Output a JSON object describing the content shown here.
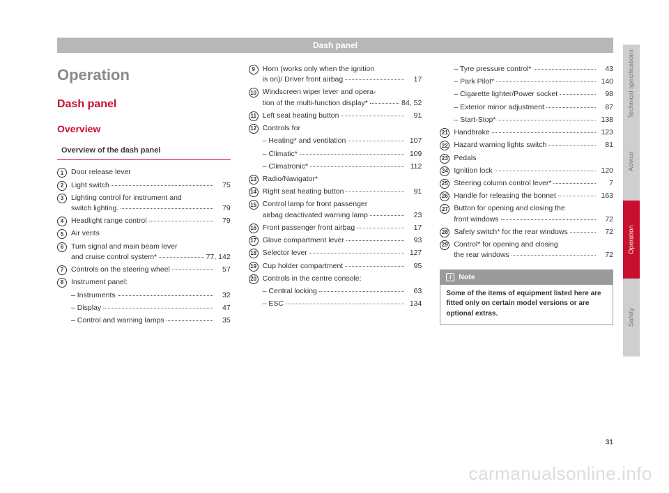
{
  "header": "Dash panel",
  "h1": "Operation",
  "h2": "Dash panel",
  "h3": "Overview",
  "subHead": "Overview of the dash panel",
  "col1": [
    {
      "n": "1",
      "lines": [
        {
          "t": "Door release lever"
        }
      ]
    },
    {
      "n": "2",
      "lines": [
        {
          "t": "Light switch",
          "p": "75"
        }
      ]
    },
    {
      "n": "3",
      "lines": [
        {
          "t": "Lighting control for instrument and"
        },
        {
          "t": "switch lighting.",
          "p": "79",
          "indent": true
        }
      ]
    },
    {
      "n": "4",
      "lines": [
        {
          "t": "Headlight range control",
          "p": "79"
        }
      ]
    },
    {
      "n": "5",
      "lines": [
        {
          "t": "Air vents"
        }
      ]
    },
    {
      "n": "6",
      "lines": [
        {
          "t": "Turn signal and main beam lever"
        },
        {
          "t": "and cruise control system*",
          "p": "77, 142",
          "indent": true
        }
      ]
    },
    {
      "n": "7",
      "lines": [
        {
          "t": "Controls on the steering wheel",
          "p": "57"
        }
      ]
    },
    {
      "n": "8",
      "lines": [
        {
          "t": "Instrument panel:"
        }
      ],
      "subs": [
        {
          "t": "– Instruments",
          "p": "32"
        },
        {
          "t": "– Display",
          "p": "47"
        },
        {
          "t": "– Control and warning lamps",
          "p": "35"
        }
      ]
    }
  ],
  "col2": [
    {
      "n": "9",
      "lines": [
        {
          "t": "Horn (works only when the ignition"
        },
        {
          "t": "is on)/ Driver front airbag",
          "p": "17",
          "indent": true
        }
      ]
    },
    {
      "n": "10",
      "lines": [
        {
          "t": "Windscreen wiper lever and opera-"
        },
        {
          "t": "tion of the multi-function display*",
          "p": "84, 52",
          "indent": true,
          "tight": true
        }
      ]
    },
    {
      "n": "11",
      "lines": [
        {
          "t": "Left seat heating button",
          "p": "91"
        }
      ]
    },
    {
      "n": "12",
      "lines": [
        {
          "t": "Controls for"
        }
      ],
      "subs": [
        {
          "t": "– Heating* and ventilation",
          "p": "107"
        },
        {
          "t": "– Climatic*",
          "p": "109"
        },
        {
          "t": "– Climatronic*",
          "p": "112"
        }
      ]
    },
    {
      "n": "13",
      "lines": [
        {
          "t": "Radio/Navigator*"
        }
      ]
    },
    {
      "n": "14",
      "lines": [
        {
          "t": "Right seat heating button",
          "p": "91"
        }
      ]
    },
    {
      "n": "15",
      "lines": [
        {
          "t": "Control lamp for front passenger"
        },
        {
          "t": "airbag deactivated warning lamp",
          "p": "23",
          "indent": true,
          "tight": true
        }
      ]
    },
    {
      "n": "16",
      "lines": [
        {
          "t": "Front passenger front airbag",
          "p": "17"
        }
      ]
    },
    {
      "n": "17",
      "lines": [
        {
          "t": "Glove compartment lever",
          "p": "93"
        }
      ]
    },
    {
      "n": "18",
      "lines": [
        {
          "t": "Selector lever",
          "p": "127"
        }
      ]
    },
    {
      "n": "19",
      "lines": [
        {
          "t": "Cup holder compartment",
          "p": "95"
        }
      ]
    },
    {
      "n": "20",
      "lines": [
        {
          "t": "Controls in the centre console:"
        }
      ],
      "subs": [
        {
          "t": "– Central locking",
          "p": "63"
        },
        {
          "t": "– ESC",
          "p": "134"
        }
      ]
    }
  ],
  "col3top": [
    {
      "t": "– Tyre pressure control*",
      "p": "43"
    },
    {
      "t": "– Park Pilot*",
      "p": "140"
    },
    {
      "t": "– Cigarette lighter/Power socket",
      "p": "98"
    },
    {
      "t": "– Exterior mirror adjustment",
      "p": "87"
    },
    {
      "t": "– Start-Stop*",
      "p": "138"
    }
  ],
  "col3": [
    {
      "n": "21",
      "lines": [
        {
          "t": "Handbrake",
          "p": "123"
        }
      ]
    },
    {
      "n": "22",
      "lines": [
        {
          "t": "Hazard warning lights switch",
          "p": "81"
        }
      ]
    },
    {
      "n": "23",
      "lines": [
        {
          "t": "Pedals"
        }
      ]
    },
    {
      "n": "24",
      "lines": [
        {
          "t": "Ignition lock",
          "p": "120"
        }
      ]
    },
    {
      "n": "25",
      "lines": [
        {
          "t": "Steering column control lever*",
          "p": "7"
        }
      ]
    },
    {
      "n": "26",
      "lines": [
        {
          "t": "Handle for releasing the bonnet",
          "p": "163"
        }
      ]
    },
    {
      "n": "27",
      "lines": [
        {
          "t": "Button for opening and closing the"
        },
        {
          "t": "front windows",
          "p": "72",
          "indent": true
        }
      ]
    },
    {
      "n": "28",
      "lines": [
        {
          "t": "Safety switch* for the rear windows",
          "p": "72",
          "tight": true
        }
      ]
    },
    {
      "n": "29",
      "lines": [
        {
          "t": "Control* for opening and closing"
        },
        {
          "t": "the rear windows",
          "p": "72",
          "indent": true
        }
      ]
    }
  ],
  "note": {
    "title": "Note",
    "body": "Some of the items of equipment listed here are fitted only on certain model versions or are optional extras."
  },
  "tabs": [
    {
      "label": "Technical specifications",
      "cls": "light"
    },
    {
      "label": "Advice",
      "cls": "light"
    },
    {
      "label": "Operation",
      "cls": "red"
    },
    {
      "label": "Safety",
      "cls": "light"
    }
  ],
  "pageNum": "31",
  "watermark": "carmanualsonline.info"
}
